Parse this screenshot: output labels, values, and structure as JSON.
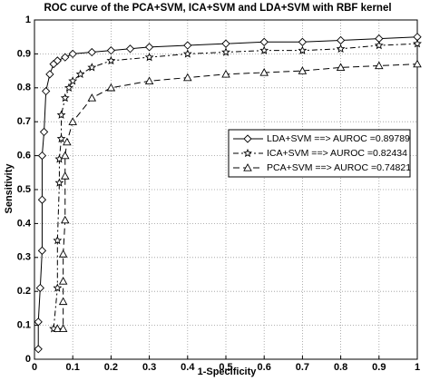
{
  "chart_data": {
    "type": "line",
    "title": "ROC curve of the PCA+SVM, ICA+SVM and LDA+SVM with RBF kernel",
    "x_label": "1-Specificity",
    "y_label": "Sensitivity",
    "xlim": [
      0,
      1
    ],
    "ylim": [
      0,
      1
    ],
    "xticks": [
      0,
      0.1,
      0.2,
      0.3,
      0.4,
      0.5,
      0.6,
      0.7,
      0.8,
      0.9,
      1
    ],
    "yticks": [
      0,
      0.1,
      0.2,
      0.3,
      0.4,
      0.5,
      0.6,
      0.7,
      0.8,
      0.9,
      1
    ],
    "grid": true,
    "legend": "center right",
    "series": [
      {
        "name": "LDA+SVM ==> AUROC =0.89789",
        "color": "#000000",
        "marker": "diamond",
        "dash": "none",
        "x": [
          0.01,
          0.01,
          0.015,
          0.02,
          0.02,
          0.02,
          0.025,
          0.03,
          0.04,
          0.05,
          0.06,
          0.08,
          0.1,
          0.15,
          0.2,
          0.25,
          0.3,
          0.4,
          0.5,
          0.6,
          0.7,
          0.8,
          0.9,
          1.0
        ],
        "values": [
          0.03,
          0.11,
          0.21,
          0.32,
          0.47,
          0.6,
          0.67,
          0.79,
          0.84,
          0.87,
          0.88,
          0.89,
          0.9,
          0.905,
          0.91,
          0.915,
          0.92,
          0.925,
          0.93,
          0.935,
          0.935,
          0.94,
          0.945,
          0.95
        ]
      },
      {
        "name": "ICA+SVM ==> AUROC =0.82434",
        "color": "#000000",
        "marker": "star",
        "dash": "6 3 2 3",
        "x": [
          0.05,
          0.06,
          0.06,
          0.065,
          0.065,
          0.07,
          0.07,
          0.08,
          0.09,
          0.1,
          0.12,
          0.15,
          0.2,
          0.3,
          0.4,
          0.5,
          0.6,
          0.7,
          0.8,
          0.9,
          1.0
        ],
        "values": [
          0.09,
          0.21,
          0.35,
          0.52,
          0.59,
          0.65,
          0.72,
          0.77,
          0.8,
          0.82,
          0.84,
          0.86,
          0.88,
          0.89,
          0.9,
          0.905,
          0.91,
          0.91,
          0.915,
          0.925,
          0.93
        ]
      },
      {
        "name": "PCA+SVM ==> AUROC =0.74821",
        "color": "#000000",
        "marker": "triangle",
        "dash": "7 4",
        "x": [
          0.06,
          0.075,
          0.075,
          0.075,
          0.075,
          0.08,
          0.08,
          0.08,
          0.085,
          0.1,
          0.15,
          0.2,
          0.3,
          0.4,
          0.5,
          0.6,
          0.7,
          0.8,
          0.9,
          1.0
        ],
        "values": [
          0.09,
          0.09,
          0.17,
          0.23,
          0.31,
          0.41,
          0.54,
          0.6,
          0.64,
          0.7,
          0.77,
          0.8,
          0.82,
          0.83,
          0.84,
          0.845,
          0.85,
          0.86,
          0.865,
          0.87
        ]
      }
    ]
  }
}
